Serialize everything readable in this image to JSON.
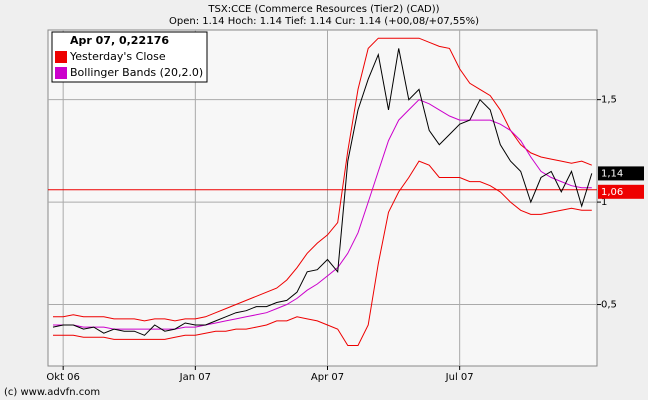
{
  "chart_data": {
    "type": "line",
    "title": "TSX:CCE (Commerce Resources (Tier2) (CAD))",
    "subtitle": "Open: 1.14 Hoch: 1.14 Tief: 1.14 Cur: 1.14 (+00,08/+07,55%)",
    "legend_title": "Apr 07, 0,22176",
    "footer": "(c) www.advfn.com",
    "categories": [
      null,
      "Okt 06",
      null,
      null,
      null,
      null,
      null,
      null,
      null,
      null,
      null,
      null,
      null,
      null,
      "Jan 07",
      null,
      null,
      null,
      null,
      null,
      null,
      null,
      null,
      null,
      null,
      null,
      null,
      "Apr 07",
      null,
      null,
      null,
      null,
      null,
      null,
      null,
      null,
      null,
      null,
      null,
      null,
      "Jul 07",
      null,
      null,
      null,
      null,
      null,
      null,
      null,
      null,
      null,
      null,
      null,
      null,
      null
    ],
    "series": [
      {
        "color": "#ee0000",
        "values": [
          0.44,
          0.44,
          0.45,
          0.44,
          0.44,
          0.44,
          0.43,
          0.43,
          0.43,
          0.42,
          0.43,
          0.43,
          0.42,
          0.43,
          0.43,
          0.44,
          0.46,
          0.48,
          0.5,
          0.52,
          0.54,
          0.56,
          0.58,
          0.62,
          0.68,
          0.75,
          0.8,
          0.84,
          0.9,
          1.25,
          1.55,
          1.75,
          1.8,
          1.8,
          1.8,
          1.8,
          1.8,
          1.78,
          1.76,
          1.75,
          1.65,
          1.58,
          1.55,
          1.52,
          1.45,
          1.35,
          1.28,
          1.24,
          1.22,
          1.21,
          1.2,
          1.19,
          1.2,
          1.18
        ]
      },
      {
        "color": "#ee0000",
        "values": [
          0.35,
          0.35,
          0.35,
          0.34,
          0.34,
          0.34,
          0.33,
          0.33,
          0.33,
          0.33,
          0.33,
          0.33,
          0.34,
          0.35,
          0.35,
          0.36,
          0.37,
          0.37,
          0.38,
          0.38,
          0.39,
          0.4,
          0.42,
          0.42,
          0.44,
          0.43,
          0.42,
          0.4,
          0.38,
          0.3,
          0.3,
          0.4,
          0.7,
          0.95,
          1.05,
          1.12,
          1.2,
          1.18,
          1.12,
          1.12,
          1.12,
          1.1,
          1.1,
          1.08,
          1.05,
          1.0,
          0.96,
          0.94,
          0.94,
          0.95,
          0.96,
          0.97,
          0.96,
          0.96
        ]
      },
      {
        "name": "Bollinger Bands (20,2.0)",
        "color": "#cc00cc",
        "values": [
          0.4,
          0.4,
          0.4,
          0.39,
          0.39,
          0.39,
          0.38,
          0.38,
          0.38,
          0.38,
          0.38,
          0.38,
          0.38,
          0.39,
          0.39,
          0.4,
          0.41,
          0.42,
          0.43,
          0.44,
          0.45,
          0.46,
          0.48,
          0.5,
          0.53,
          0.57,
          0.6,
          0.64,
          0.68,
          0.75,
          0.85,
          1.0,
          1.15,
          1.3,
          1.4,
          1.45,
          1.5,
          1.48,
          1.45,
          1.42,
          1.4,
          1.4,
          1.4,
          1.4,
          1.38,
          1.35,
          1.3,
          1.22,
          1.15,
          1.12,
          1.1,
          1.08,
          1.07,
          1.07
        ]
      },
      {
        "color": "#000000",
        "values": [
          0.39,
          0.4,
          0.4,
          0.38,
          0.39,
          0.36,
          0.38,
          0.37,
          0.37,
          0.35,
          0.4,
          0.37,
          0.38,
          0.41,
          0.4,
          0.4,
          0.42,
          0.44,
          0.46,
          0.47,
          0.49,
          0.49,
          0.51,
          0.52,
          0.56,
          0.66,
          0.67,
          0.72,
          0.66,
          1.2,
          1.45,
          1.6,
          1.72,
          1.45,
          1.75,
          1.5,
          1.55,
          1.35,
          1.28,
          1.33,
          1.38,
          1.4,
          1.5,
          1.45,
          1.28,
          1.2,
          1.15,
          1.0,
          1.12,
          1.15,
          1.05,
          1.15,
          0.98,
          1.14
        ]
      }
    ],
    "reference_line": {
      "name": "Yesterday's Close",
      "value": 1.06,
      "label": "1,06",
      "color": "#ee0000"
    },
    "last_price": {
      "value": 1.14,
      "label": "1,14",
      "color": "#000000"
    },
    "ylim": [
      0.2,
      1.84
    ],
    "yticks": [
      {
        "value": 0.5,
        "label": "0,5"
      },
      1,
      {
        "value": 1.5,
        "label": "1,5"
      }
    ],
    "grid": true
  }
}
